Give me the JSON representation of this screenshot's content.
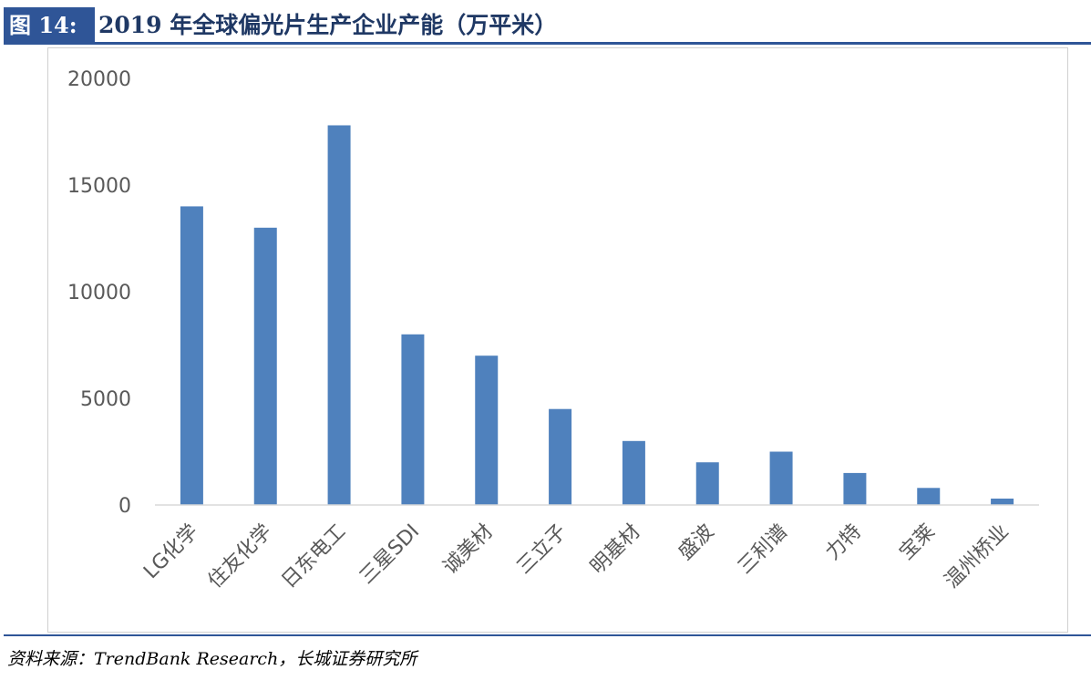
{
  "header": {
    "figure_label": "图 14:",
    "title": "2019 年全球偏光片生产企业产能（万平米）"
  },
  "footer": {
    "source": "资料来源：TrendBank Research，长城证券研究所"
  },
  "colors": {
    "bar": "#4f81bd",
    "accent": "#2f5597",
    "axis_text": "#595959"
  },
  "chart_data": {
    "type": "bar",
    "title": "",
    "xlabel": "",
    "ylabel": "",
    "categories": [
      "LG化学",
      "住友化学",
      "日东电工",
      "三星SDI",
      "诚美材",
      "三立子",
      "明基材",
      "盛波",
      "三利谱",
      "力特",
      "宝莱",
      "温州桥业"
    ],
    "values": [
      14000,
      13000,
      17800,
      8000,
      7000,
      4500,
      3000,
      2000,
      2500,
      1500,
      800,
      300
    ],
    "ylim": [
      0,
      20000
    ],
    "yticks": [
      0,
      5000,
      10000,
      15000,
      20000
    ],
    "yticklabels": [
      "0",
      "5000",
      "10000",
      "15000",
      "20000"
    ],
    "grid": false,
    "legend": "none"
  }
}
